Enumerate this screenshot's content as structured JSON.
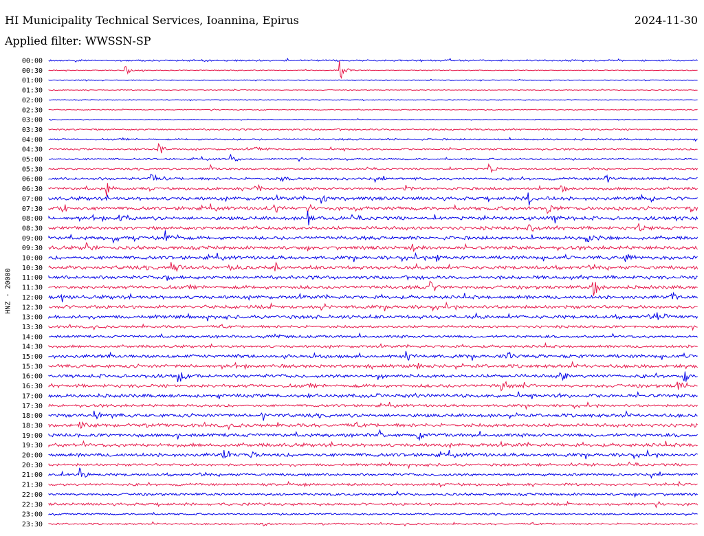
{
  "header": {
    "title": "HI Municipality Technical Services, Ioannina, Epirus",
    "date": "2024-11-30",
    "filter": "Applied filter: WWSSN-SP"
  },
  "chart_data": {
    "type": "line",
    "title": "HI Municipality Technical Services, Ioannina, Epirus",
    "subtitle": "Applied filter: WWSSN-SP",
    "ylabel": "HNZ - 20000",
    "row_labels": [
      "00:00",
      "00:30",
      "01:00",
      "01:30",
      "02:00",
      "02:30",
      "03:00",
      "03:30",
      "04:00",
      "04:30",
      "05:00",
      "05:30",
      "06:00",
      "06:30",
      "07:00",
      "07:30",
      "08:00",
      "08:30",
      "09:00",
      "09:30",
      "10:00",
      "10:30",
      "11:00",
      "11:30",
      "12:00",
      "12:30",
      "13:00",
      "13:30",
      "14:00",
      "14:30",
      "15:00",
      "15:30",
      "16:00",
      "16:30",
      "17:00",
      "17:30",
      "18:00",
      "18:30",
      "19:00",
      "19:30",
      "20:00",
      "20:30",
      "21:00",
      "21:30",
      "22:00",
      "22:30",
      "23:00",
      "23:30"
    ],
    "colors": [
      "#0000e6",
      "#e6194b"
    ],
    "noise_levels": [
      2,
      1,
      1,
      1,
      1,
      1,
      1,
      2,
      2,
      2,
      2,
      2,
      3,
      3,
      4,
      4,
      4,
      4,
      4,
      4,
      4,
      4,
      4,
      4,
      4,
      4,
      4,
      3,
      3,
      3,
      4,
      4,
      4,
      4,
      4,
      3,
      4,
      4,
      4,
      4,
      4,
      3,
      3,
      3,
      3,
      3,
      2,
      2
    ],
    "events": [
      {
        "row": 1,
        "pos": 0.45,
        "amp": 14
      },
      {
        "row": 1,
        "pos": 0.12,
        "amp": 6
      },
      {
        "row": 9,
        "pos": 0.17,
        "amp": 10
      },
      {
        "row": 10,
        "pos": 0.28,
        "amp": 10
      },
      {
        "row": 9,
        "pos": 0.32,
        "amp": 6
      },
      {
        "row": 11,
        "pos": 0.25,
        "amp": 8
      },
      {
        "row": 11,
        "pos": 0.68,
        "amp": 7
      },
      {
        "row": 12,
        "pos": 0.16,
        "amp": 7
      },
      {
        "row": 12,
        "pos": 0.36,
        "amp": 6
      },
      {
        "row": 12,
        "pos": 0.86,
        "amp": 7
      },
      {
        "row": 13,
        "pos": 0.09,
        "amp": 10
      },
      {
        "row": 13,
        "pos": 0.32,
        "amp": 8
      },
      {
        "row": 13,
        "pos": 0.55,
        "amp": 8
      },
      {
        "row": 13,
        "pos": 0.79,
        "amp": 7
      },
      {
        "row": 14,
        "pos": 0.42,
        "amp": 10
      },
      {
        "row": 14,
        "pos": 0.74,
        "amp": 10
      },
      {
        "row": 14,
        "pos": 0.93,
        "amp": 8
      },
      {
        "row": 15,
        "pos": 0.02,
        "amp": 9
      },
      {
        "row": 15,
        "pos": 0.35,
        "amp": 6
      },
      {
        "row": 15,
        "pos": 0.77,
        "amp": 9
      },
      {
        "row": 15,
        "pos": 0.87,
        "amp": 9
      },
      {
        "row": 15,
        "pos": 0.99,
        "amp": 9
      },
      {
        "row": 16,
        "pos": 0.11,
        "amp": 9
      },
      {
        "row": 16,
        "pos": 0.4,
        "amp": 10
      },
      {
        "row": 16,
        "pos": 0.78,
        "amp": 7
      },
      {
        "row": 17,
        "pos": 0.3,
        "amp": 6
      },
      {
        "row": 17,
        "pos": 0.74,
        "amp": 7
      },
      {
        "row": 17,
        "pos": 0.91,
        "amp": 7
      },
      {
        "row": 18,
        "pos": 0.1,
        "amp": 7
      },
      {
        "row": 18,
        "pos": 0.18,
        "amp": 9
      },
      {
        "row": 18,
        "pos": 0.83,
        "amp": 10
      },
      {
        "row": 19,
        "pos": 0.06,
        "amp": 7
      },
      {
        "row": 19,
        "pos": 0.56,
        "amp": 8
      },
      {
        "row": 20,
        "pos": 0.6,
        "amp": 7
      },
      {
        "row": 20,
        "pos": 0.89,
        "amp": 9
      },
      {
        "row": 21,
        "pos": 0.19,
        "amp": 9
      },
      {
        "row": 21,
        "pos": 0.28,
        "amp": 8
      },
      {
        "row": 21,
        "pos": 0.35,
        "amp": 8
      },
      {
        "row": 22,
        "pos": 0.18,
        "amp": 6
      },
      {
        "row": 23,
        "pos": 0.59,
        "amp": 10
      },
      {
        "row": 23,
        "pos": 0.84,
        "amp": 14
      },
      {
        "row": 24,
        "pos": 0.02,
        "amp": 7
      },
      {
        "row": 24,
        "pos": 0.96,
        "amp": 7
      },
      {
        "row": 25,
        "pos": 0.42,
        "amp": 8
      },
      {
        "row": 26,
        "pos": 0.41,
        "amp": 7
      },
      {
        "row": 26,
        "pos": 0.94,
        "amp": 7
      },
      {
        "row": 31,
        "pos": 0.57,
        "amp": 8
      },
      {
        "row": 30,
        "pos": 0.55,
        "amp": 9
      },
      {
        "row": 30,
        "pos": 0.71,
        "amp": 8
      },
      {
        "row": 32,
        "pos": 0.2,
        "amp": 10
      },
      {
        "row": 32,
        "pos": 0.51,
        "amp": 8
      },
      {
        "row": 32,
        "pos": 0.79,
        "amp": 9
      },
      {
        "row": 32,
        "pos": 0.98,
        "amp": 9
      },
      {
        "row": 33,
        "pos": 0.7,
        "amp": 9
      },
      {
        "row": 33,
        "pos": 0.97,
        "amp": 8
      },
      {
        "row": 36,
        "pos": 0.07,
        "amp": 8
      },
      {
        "row": 36,
        "pos": 0.33,
        "amp": 10
      },
      {
        "row": 37,
        "pos": 0.05,
        "amp": 8
      },
      {
        "row": 38,
        "pos": 0.51,
        "amp": 6
      },
      {
        "row": 38,
        "pos": 0.57,
        "amp": 8
      },
      {
        "row": 40,
        "pos": 0.27,
        "amp": 7
      },
      {
        "row": 40,
        "pos": 0.31,
        "amp": 8
      },
      {
        "row": 42,
        "pos": 0.05,
        "amp": 10
      },
      {
        "row": 47,
        "pos": 0.33,
        "amp": 4
      }
    ]
  }
}
